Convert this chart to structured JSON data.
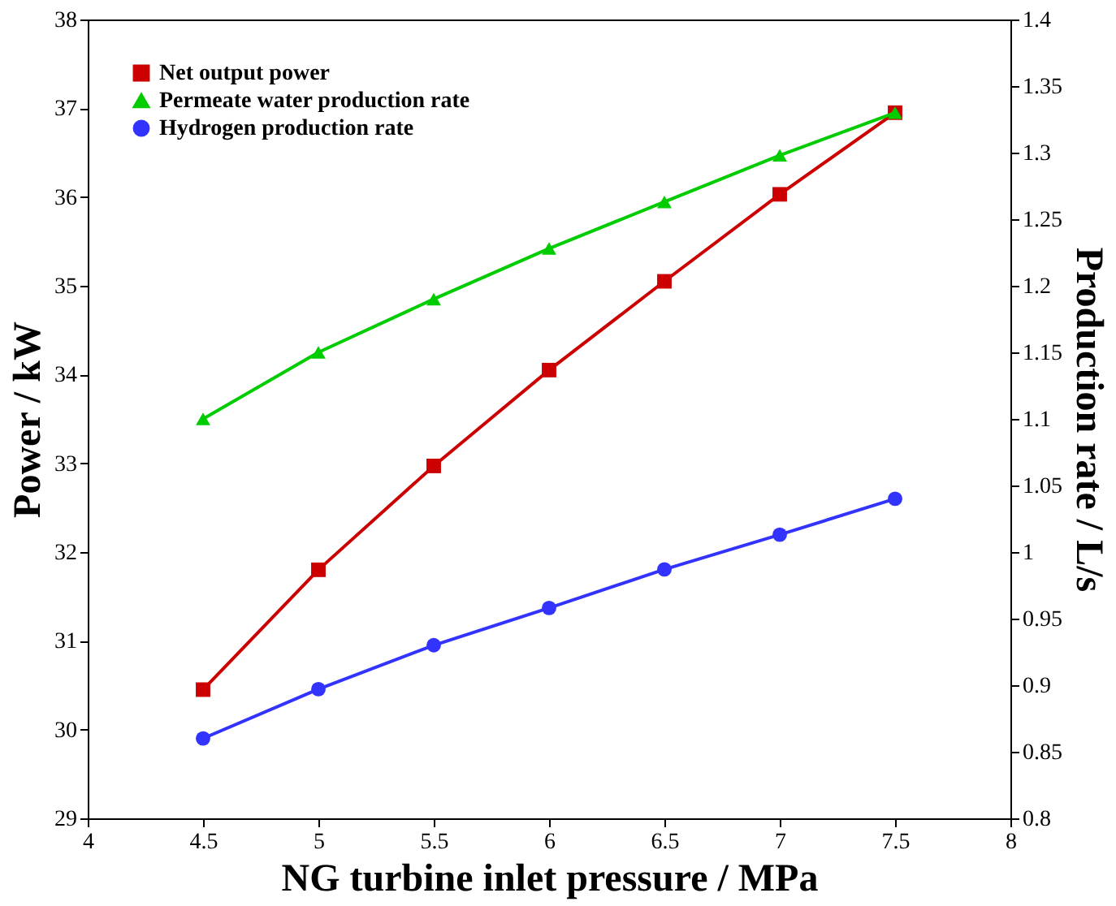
{
  "chart_data": {
    "type": "line",
    "xlabel": "NG turbine inlet pressure / MPa",
    "ylabel": "Power / kW",
    "y2label": "Production rate / L/s",
    "x": [
      4.5,
      5,
      5.5,
      6,
      6.5,
      7,
      7.5
    ],
    "series": [
      {
        "name": "Net output power",
        "color": "#cc0000",
        "marker": "square",
        "values": [
          30.45,
          31.8,
          32.97,
          34.05,
          35.05,
          36.03,
          36.95
        ]
      },
      {
        "name": "Permeate water production rate",
        "color": "#00cc00",
        "marker": "triangle",
        "axis": "y2",
        "values": [
          1.1,
          1.15,
          1.19,
          1.228,
          1.263,
          1.298,
          1.33
        ]
      },
      {
        "name": "Hydrogen production rate",
        "color": "#3333ff",
        "marker": "circle",
        "axis": "y2",
        "values": [
          0.86,
          0.897,
          0.93,
          0.958,
          0.987,
          1.013,
          1.04
        ]
      }
    ],
    "xlim": [
      4,
      8
    ],
    "xticks": [
      4,
      4.5,
      5,
      5.5,
      6,
      6.5,
      7,
      7.5,
      8
    ],
    "ylim": [
      29,
      38
    ],
    "yticks": [
      29,
      30,
      31,
      32,
      33,
      34,
      35,
      36,
      37,
      38
    ],
    "y2lim": [
      0.8,
      1.4
    ],
    "y2ticks": [
      0.8,
      0.85,
      0.9,
      0.95,
      1,
      1.05,
      1.1,
      1.15,
      1.2,
      1.25,
      1.3,
      1.35,
      1.4
    ],
    "legend": "top left",
    "grid": false,
    "line_style": "solid"
  }
}
